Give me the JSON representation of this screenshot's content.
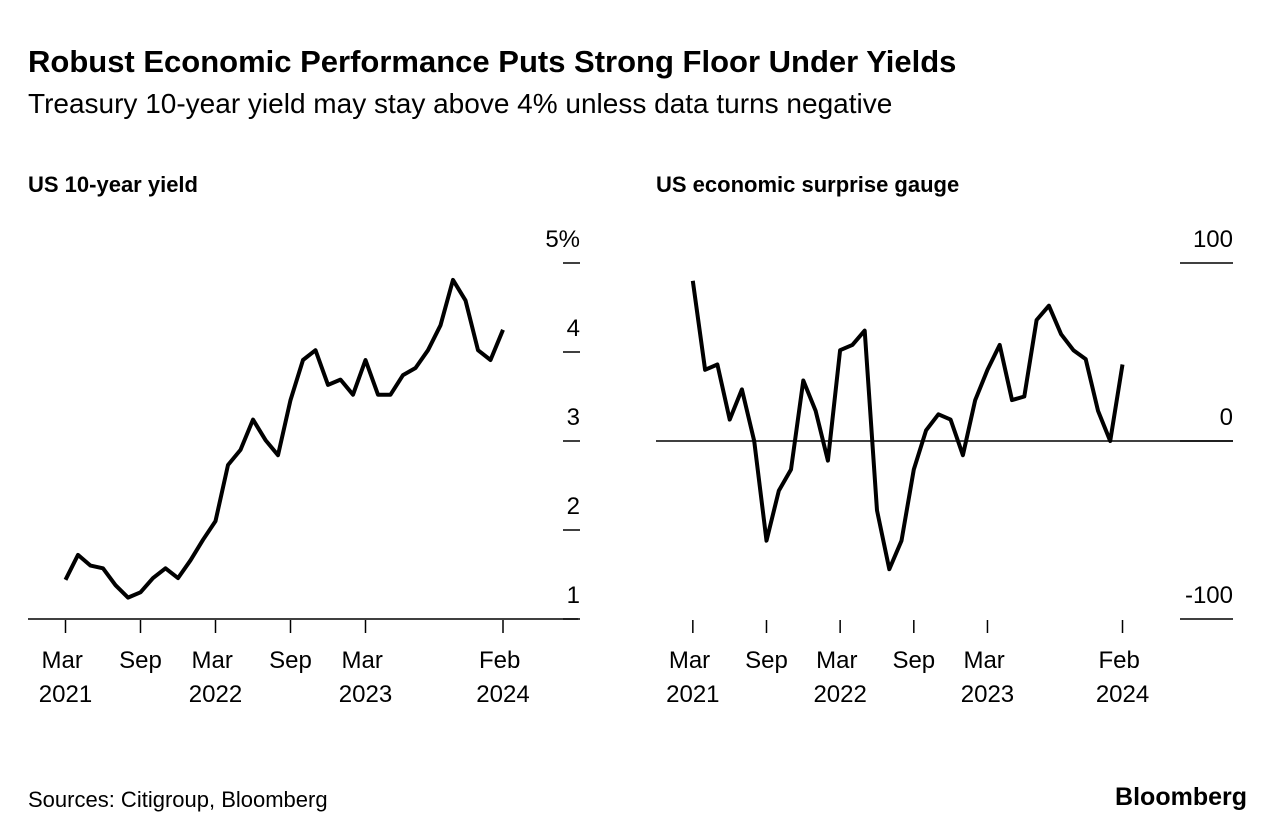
{
  "header": {
    "title": "Robust Economic Performance Puts Strong Floor Under Yields",
    "subtitle": "Treasury 10-year yield may stay above 4% unless data turns negative"
  },
  "footer": {
    "source": "Sources: Citigroup, Bloomberg",
    "brand": "Bloomberg"
  },
  "chart_data": [
    {
      "type": "line",
      "title": "US 10-year yield",
      "color": "#000000",
      "x": [
        "2021-03",
        "2021-04",
        "2021-05",
        "2021-06",
        "2021-07",
        "2021-08",
        "2021-09",
        "2021-10",
        "2021-11",
        "2021-12",
        "2022-01",
        "2022-02",
        "2022-03",
        "2022-04",
        "2022-05",
        "2022-06",
        "2022-07",
        "2022-08",
        "2022-09",
        "2022-10",
        "2022-11",
        "2022-12",
        "2023-01",
        "2023-02",
        "2023-03",
        "2023-04",
        "2023-05",
        "2023-06",
        "2023-07",
        "2023-08",
        "2023-09",
        "2023-10",
        "2023-11",
        "2023-12",
        "2024-01",
        "2024-02"
      ],
      "values": [
        1.44,
        1.72,
        1.6,
        1.57,
        1.38,
        1.24,
        1.3,
        1.46,
        1.57,
        1.46,
        1.66,
        1.89,
        2.1,
        2.73,
        2.9,
        3.24,
        3.01,
        2.84,
        3.46,
        3.91,
        4.02,
        3.63,
        3.69,
        3.52,
        3.91,
        3.52,
        3.52,
        3.74,
        3.82,
        4.02,
        4.3,
        4.81,
        4.58,
        4.02,
        3.91,
        4.25
      ],
      "xlim": [
        "2020-12",
        "2024-08"
      ],
      "xticks": [
        {
          "value": "2021-03",
          "label": "Mar 2021"
        },
        {
          "value": "2021-09",
          "label": "Sep"
        },
        {
          "value": "2022-03",
          "label": "Mar 2022"
        },
        {
          "value": "2022-09",
          "label": "Sep"
        },
        {
          "value": "2023-03",
          "label": "Mar 2023"
        },
        {
          "value": "2024-02",
          "label": "Feb 2024"
        }
      ],
      "ylim": [
        1,
        5
      ],
      "yticks": [
        {
          "value": 5,
          "label": "5%"
        },
        4,
        3,
        2,
        1
      ],
      "baseline": 1
    },
    {
      "type": "line",
      "title": "US economic surprise gauge",
      "color": "#000000",
      "x": [
        "2021-03",
        "2021-04",
        "2021-05",
        "2021-06",
        "2021-07",
        "2021-08",
        "2021-09",
        "2021-10",
        "2021-11",
        "2021-12",
        "2022-01",
        "2022-02",
        "2022-03",
        "2022-04",
        "2022-05",
        "2022-06",
        "2022-07",
        "2022-08",
        "2022-09",
        "2022-10",
        "2022-11",
        "2022-12",
        "2023-01",
        "2023-02",
        "2023-03",
        "2023-04",
        "2023-05",
        "2023-06",
        "2023-07",
        "2023-08",
        "2023-09",
        "2023-10",
        "2023-11",
        "2023-12",
        "2024-01",
        "2024-02"
      ],
      "values": [
        90,
        40,
        43,
        12,
        29,
        0,
        -56,
        -28,
        -16,
        34,
        17,
        -11,
        51,
        54,
        62,
        -39,
        -72,
        -56,
        -16,
        6,
        15,
        12,
        -8,
        23,
        40,
        54,
        23,
        25,
        68,
        76,
        60,
        51,
        46,
        17,
        0,
        43
      ],
      "xlim": [
        "2020-12",
        "2024-11"
      ],
      "xticks": [
        {
          "value": "2021-03",
          "label": "Mar 2021"
        },
        {
          "value": "2021-09",
          "label": "Sep"
        },
        {
          "value": "2022-03",
          "label": "Mar 2022"
        },
        {
          "value": "2022-09",
          "label": "Sep"
        },
        {
          "value": "2023-03",
          "label": "Mar 2023"
        },
        {
          "value": "2024-02",
          "label": "Feb 2024"
        }
      ],
      "ylim": [
        -100,
        100
      ],
      "yticks": [
        100,
        0,
        -100
      ],
      "baseline": 0
    }
  ]
}
